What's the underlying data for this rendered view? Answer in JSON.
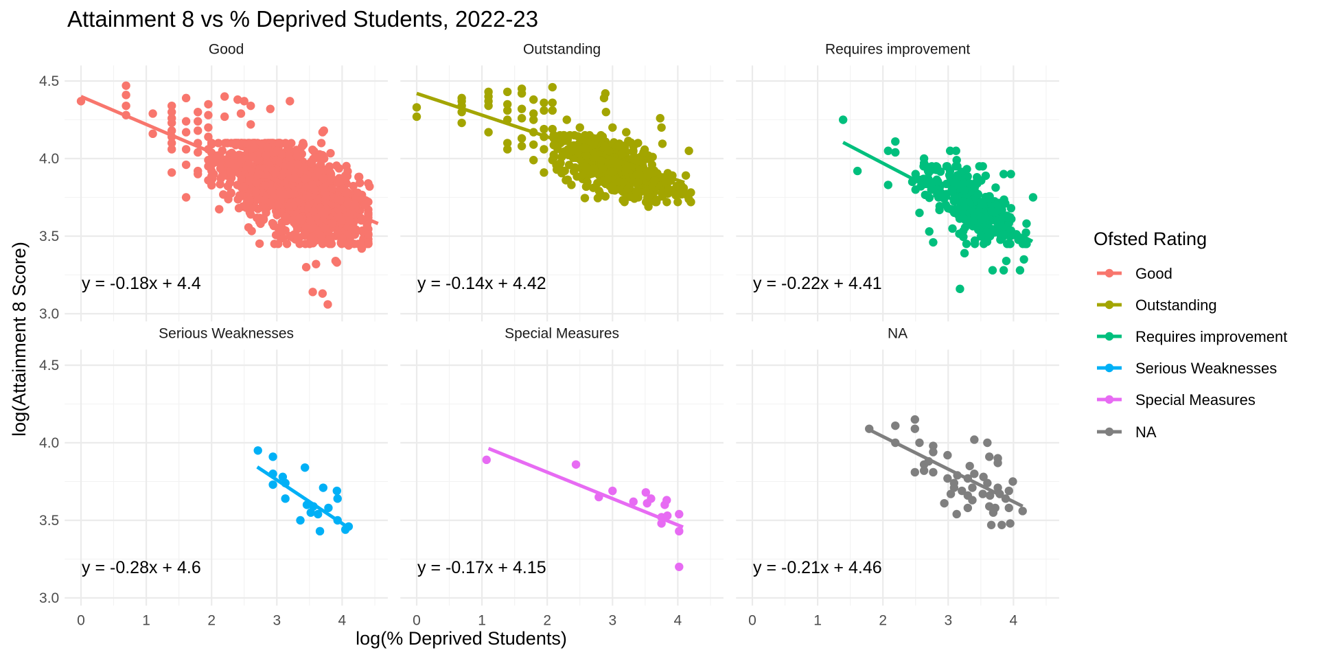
{
  "chart_data": {
    "type": "scatter",
    "title": "Attainment 8 vs % Deprived Students, 2022-23",
    "xlabel": "log(% Deprived Students)",
    "ylabel": "log(Attainment 8 Score)",
    "xlim": [
      -0.25,
      4.7
    ],
    "ylim": [
      2.95,
      4.6
    ],
    "x_ticks": [
      "0",
      "1",
      "2",
      "3",
      "4"
    ],
    "y_ticks": [
      "3.0",
      "3.5",
      "4.0",
      "4.5"
    ],
    "grid": true,
    "legend": {
      "title": "Ofsted Rating",
      "placement": "right",
      "entries": [
        "Good",
        "Outstanding",
        "Requires improvement",
        "Serious Weaknesses",
        "Special Measures",
        "NA"
      ]
    },
    "facets": [
      {
        "name": "Good",
        "color": "#F8766D",
        "equation": "y = -0.18x + 4.4",
        "fit": {
          "slope": -0.18,
          "intercept": 4.4,
          "x_range": [
            0,
            4.55
          ]
        },
        "cluster": {
          "center": [
            3.25,
            3.8
          ],
          "spread": [
            0.5,
            0.13
          ],
          "count": 1600,
          "x_range": [
            2.0,
            4.4
          ],
          "y_range": [
            3.45,
            4.1
          ],
          "tilt": -0.18
        },
        "points": [
          [
            0,
            4.37
          ],
          [
            0.69,
            4.47
          ],
          [
            0.69,
            4.41
          ],
          [
            0.69,
            4.34
          ],
          [
            0.69,
            4.28
          ],
          [
            1.1,
            4.29
          ],
          [
            1.1,
            4.16
          ],
          [
            1.39,
            4.34
          ],
          [
            1.39,
            4.3
          ],
          [
            1.39,
            4.26
          ],
          [
            1.39,
            4.23
          ],
          [
            1.39,
            4.18
          ],
          [
            1.39,
            4.14
          ],
          [
            1.39,
            4.1
          ],
          [
            1.39,
            4.06
          ],
          [
            1.39,
            3.91
          ],
          [
            1.61,
            4.39
          ],
          [
            1.61,
            4.24
          ],
          [
            1.61,
            4.17
          ],
          [
            1.61,
            4.06
          ],
          [
            1.61,
            3.96
          ],
          [
            1.61,
            3.75
          ],
          [
            1.79,
            4.3
          ],
          [
            1.79,
            4.24
          ],
          [
            1.79,
            4.18
          ],
          [
            1.79,
            4.1
          ],
          [
            1.79,
            4.04
          ],
          [
            1.79,
            3.92
          ],
          [
            1.79,
            3.9
          ],
          [
            1.95,
            4.35
          ],
          [
            1.95,
            4.28
          ],
          [
            1.95,
            4.2
          ],
          [
            1.95,
            4.14
          ],
          [
            1.95,
            4.06
          ],
          [
            1.95,
            3.99
          ],
          [
            1.95,
            3.95
          ],
          [
            1.95,
            3.86
          ],
          [
            2.2,
            4.4
          ],
          [
            2.2,
            4.27
          ],
          [
            2.4,
            4.38
          ],
          [
            2.5,
            4.37
          ],
          [
            2.6,
            4.34
          ],
          [
            2.45,
            4.29
          ],
          [
            2.6,
            4.22
          ],
          [
            2.9,
            4.32
          ],
          [
            3.2,
            4.37
          ],
          [
            3.7,
            4.17
          ],
          [
            3.72,
            4.18
          ],
          [
            4.4,
            3.84
          ],
          [
            4.42,
            3.82
          ],
          [
            4.35,
            3.7
          ],
          [
            3.55,
            3.14
          ],
          [
            3.7,
            3.13
          ],
          [
            3.78,
            3.06
          ],
          [
            3.9,
            3.34
          ],
          [
            3.92,
            3.33
          ],
          [
            3.45,
            3.3
          ],
          [
            3.6,
            3.32
          ],
          [
            2.6,
            3.64
          ],
          [
            2.75,
            3.58
          ],
          [
            3.05,
            3.53
          ],
          [
            3.2,
            3.5
          ],
          [
            3.35,
            3.45
          ],
          [
            4.1,
            3.44
          ],
          [
            4.3,
            3.42
          ]
        ]
      },
      {
        "name": "Outstanding",
        "color": "#A3A500",
        "equation": "y = -0.14x + 4.42",
        "fit": {
          "slope": -0.14,
          "intercept": 4.42,
          "x_range": [
            0,
            4.1
          ]
        },
        "cluster": {
          "center": [
            3.05,
            3.95
          ],
          "spread": [
            0.45,
            0.09
          ],
          "count": 500,
          "x_range": [
            2.1,
            4.2
          ],
          "y_range": [
            3.72,
            4.15
          ],
          "tilt": -0.14
        },
        "points": [
          [
            0,
            4.33
          ],
          [
            0,
            4.27
          ],
          [
            0.69,
            4.39
          ],
          [
            0.69,
            4.37
          ],
          [
            0.69,
            4.34
          ],
          [
            0.69,
            4.3
          ],
          [
            0.69,
            4.23
          ],
          [
            1.1,
            4.43
          ],
          [
            1.1,
            4.4
          ],
          [
            1.1,
            4.37
          ],
          [
            1.1,
            4.34
          ],
          [
            1.1,
            4.17
          ],
          [
            1.39,
            4.43
          ],
          [
            1.39,
            4.35
          ],
          [
            1.39,
            4.31
          ],
          [
            1.39,
            4.25
          ],
          [
            1.39,
            4.1
          ],
          [
            1.39,
            4.06
          ],
          [
            1.61,
            4.45
          ],
          [
            1.61,
            4.42
          ],
          [
            1.61,
            4.32
          ],
          [
            1.61,
            4.26
          ],
          [
            1.61,
            4.13
          ],
          [
            1.61,
            4.08
          ],
          [
            1.79,
            4.38
          ],
          [
            1.79,
            4.29
          ],
          [
            1.79,
            4.25
          ],
          [
            1.79,
            4.17
          ],
          [
            1.79,
            4.09
          ],
          [
            1.79,
            3.99
          ],
          [
            1.95,
            4.36
          ],
          [
            1.95,
            4.31
          ],
          [
            1.95,
            4.19
          ],
          [
            1.95,
            4.14
          ],
          [
            1.95,
            4.06
          ],
          [
            1.95,
            3.91
          ],
          [
            2.08,
            4.46
          ],
          [
            2.08,
            4.36
          ],
          [
            2.08,
            4.31
          ],
          [
            2.08,
            4.19
          ],
          [
            2.08,
            3.99
          ],
          [
            2.89,
            4.42
          ],
          [
            2.87,
            4.39
          ],
          [
            2.9,
            4.3
          ],
          [
            3.21,
            4.17
          ],
          [
            3.39,
            4.1
          ],
          [
            3.73,
            4.26
          ],
          [
            3.75,
            4.2
          ],
          [
            4.17,
            4.05
          ],
          [
            4.09,
            3.81
          ],
          [
            4.05,
            3.77
          ],
          [
            4.12,
            3.77
          ],
          [
            3.55,
            3.69
          ],
          [
            2.5,
            4.2
          ],
          [
            2.3,
            4.25
          ],
          [
            3.0,
            4.2
          ],
          [
            3.1,
            3.85
          ],
          [
            2.6,
            3.82
          ]
        ]
      },
      {
        "name": "Requires improvement",
        "color": "#00BF7D",
        "equation": "y = -0.22x + 4.41",
        "fit": {
          "slope": -0.22,
          "intercept": 4.41,
          "x_range": [
            1.39,
            4.29
          ]
        },
        "cluster": {
          "center": [
            3.35,
            3.7
          ],
          "spread": [
            0.35,
            0.1
          ],
          "count": 320,
          "x_range": [
            2.5,
            4.2
          ],
          "y_range": [
            3.45,
            3.95
          ],
          "tilt": -0.22
        },
        "points": [
          [
            1.39,
            4.25
          ],
          [
            1.61,
            3.92
          ],
          [
            2.08,
            3.83
          ],
          [
            2.08,
            4.05
          ],
          [
            2.19,
            4.11
          ],
          [
            2.19,
            4.04
          ],
          [
            2.63,
            4.0
          ],
          [
            2.63,
            3.97
          ],
          [
            3.03,
            4.05
          ],
          [
            3.12,
            4.05
          ],
          [
            3.13,
            3.99
          ],
          [
            3.53,
            3.95
          ],
          [
            3.85,
            3.9
          ],
          [
            3.96,
            3.9
          ],
          [
            4.3,
            3.75
          ],
          [
            2.56,
            3.65
          ],
          [
            2.71,
            3.53
          ],
          [
            2.77,
            3.46
          ],
          [
            3.25,
            3.39
          ],
          [
            3.18,
            3.16
          ],
          [
            3.68,
            3.28
          ],
          [
            3.85,
            3.28
          ],
          [
            4.1,
            3.28
          ],
          [
            4.16,
            3.35
          ],
          [
            3.89,
            3.34
          ],
          [
            2.5,
            3.9
          ],
          [
            2.5,
            3.8
          ],
          [
            2.45,
            3.85
          ]
        ]
      },
      {
        "name": "Serious Weaknesses",
        "color": "#00B0F6",
        "equation": "y = -0.28x + 4.6",
        "fit": {
          "slope": -0.28,
          "intercept": 4.6,
          "x_range": [
            2.7,
            4.1
          ]
        },
        "points": [
          [
            2.71,
            3.95
          ],
          [
            2.94,
            3.91
          ],
          [
            3.43,
            3.84
          ],
          [
            2.94,
            3.8
          ],
          [
            3.09,
            3.78
          ],
          [
            2.94,
            3.73
          ],
          [
            3.13,
            3.74
          ],
          [
            3.71,
            3.71
          ],
          [
            3.92,
            3.69
          ],
          [
            3.93,
            3.64
          ],
          [
            3.13,
            3.64
          ],
          [
            3.46,
            3.6
          ],
          [
            3.56,
            3.59
          ],
          [
            3.79,
            3.58
          ],
          [
            3.52,
            3.55
          ],
          [
            3.63,
            3.54
          ],
          [
            3.93,
            3.5
          ],
          [
            3.36,
            3.5
          ],
          [
            3.66,
            3.43
          ],
          [
            4.05,
            3.44
          ],
          [
            4.1,
            3.46
          ]
        ]
      },
      {
        "name": "Special Measures",
        "color": "#E76BF3",
        "equation": "y = -0.17x + 4.15",
        "fit": {
          "slope": -0.17,
          "intercept": 4.15,
          "x_range": [
            1.1,
            4.08
          ]
        },
        "points": [
          [
            1.07,
            3.89
          ],
          [
            2.44,
            3.86
          ],
          [
            2.79,
            3.65
          ],
          [
            3.0,
            3.69
          ],
          [
            3.32,
            3.62
          ],
          [
            3.51,
            3.68
          ],
          [
            3.59,
            3.64
          ],
          [
            3.53,
            3.61
          ],
          [
            3.8,
            3.6
          ],
          [
            3.83,
            3.63
          ],
          [
            3.75,
            3.52
          ],
          [
            3.84,
            3.53
          ],
          [
            3.75,
            3.48
          ],
          [
            4.02,
            3.54
          ],
          [
            4.02,
            3.43
          ],
          [
            4.02,
            3.2
          ]
        ]
      },
      {
        "name": "NA",
        "color": "#7F7F7F",
        "equation": "y = -0.21x + 4.46",
        "fit": {
          "slope": -0.21,
          "intercept": 4.46,
          "x_range": [
            1.79,
            4.14
          ]
        },
        "points": [
          [
            1.79,
            4.09
          ],
          [
            2.19,
            4.11
          ],
          [
            2.49,
            4.15
          ],
          [
            2.49,
            4.09
          ],
          [
            2.19,
            4.0
          ],
          [
            2.56,
            4.0
          ],
          [
            2.77,
            3.98
          ],
          [
            2.77,
            3.94
          ],
          [
            2.99,
            3.92
          ],
          [
            3.4,
            4.02
          ],
          [
            3.6,
            4.0
          ],
          [
            3.63,
            3.91
          ],
          [
            3.76,
            3.9
          ],
          [
            3.76,
            3.87
          ],
          [
            2.63,
            3.86
          ],
          [
            2.7,
            3.88
          ],
          [
            2.49,
            3.81
          ],
          [
            2.63,
            3.82
          ],
          [
            2.77,
            3.81
          ],
          [
            3.33,
            3.85
          ],
          [
            2.99,
            3.77
          ],
          [
            3.14,
            3.79
          ],
          [
            3.3,
            3.77
          ],
          [
            3.4,
            3.8
          ],
          [
            3.54,
            3.78
          ],
          [
            3.6,
            3.74
          ],
          [
            3.09,
            3.74
          ],
          [
            3.09,
            3.71
          ],
          [
            3.37,
            3.71
          ],
          [
            3.99,
            3.75
          ],
          [
            3.04,
            3.67
          ],
          [
            3.21,
            3.69
          ],
          [
            3.3,
            3.66
          ],
          [
            3.37,
            3.63
          ],
          [
            3.53,
            3.67
          ],
          [
            3.64,
            3.66
          ],
          [
            3.76,
            3.71
          ],
          [
            3.79,
            3.67
          ],
          [
            3.93,
            3.69
          ],
          [
            3.88,
            3.64
          ],
          [
            2.94,
            3.61
          ],
          [
            3.3,
            3.58
          ],
          [
            3.13,
            3.54
          ],
          [
            3.63,
            3.59
          ],
          [
            3.72,
            3.58
          ],
          [
            3.69,
            3.55
          ],
          [
            3.93,
            3.58
          ],
          [
            4.14,
            3.56
          ],
          [
            3.66,
            3.47
          ],
          [
            3.82,
            3.47
          ],
          [
            3.95,
            3.48
          ]
        ]
      }
    ]
  }
}
